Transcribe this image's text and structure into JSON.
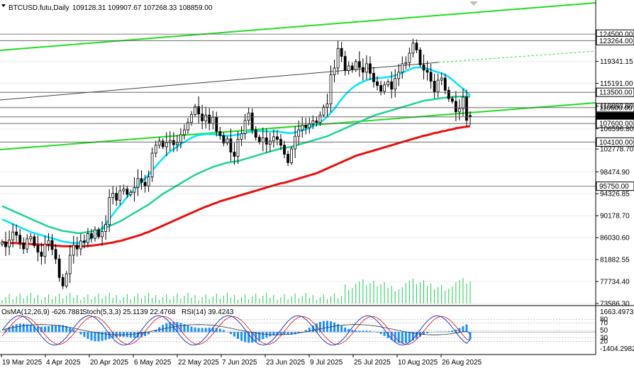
{
  "header": {
    "symbol_label": "BTCUSD.futu,Daily",
    "ohlc_label": "109128.31 109907.67 107268.33 108859.00"
  },
  "oscillator_header": {
    "osma_label": "OsMA(12,26,9) -626.7881",
    "stoch_label": "Stoch(5,3,3) 25.1139 22.4768",
    "rsi_label": "RSI(14) 39.4243"
  },
  "colors": {
    "candle": "#000000",
    "ma_fast": "#00e5ff",
    "ma_mid": "#1ed39a",
    "ma_slow": "#e81010",
    "channel": "#22dd22",
    "volume": "#22cc55",
    "osma_bar": "#1e90ff",
    "stoch_main": "#1f3fbf",
    "stoch_signal": "#d01010",
    "rsi": "#333333",
    "level_box": "#000000"
  },
  "chart_data": [
    {
      "type": "candlestick",
      "title": "",
      "x_labels": [
        "19 Mar 2025",
        "4 Apr 2025",
        "20 Apr 2025",
        "6 May 2025",
        "22 May 2025",
        "7 Jun 2025",
        "23 Jun 2025",
        "9 Jul 2025",
        "25 Jul 2025",
        "10 Aug 2025",
        "26 Aug 2025"
      ],
      "y_ticks": [
        119341.15,
        115191.0,
        110893.8,
        106596.8,
        102778.7,
        98474.9,
        94326.85,
        90178.7,
        86030.6,
        81882.55,
        77734.4,
        73586.3
      ],
      "ylim": [
        73586.3,
        128000
      ],
      "level_labels": [
        124500.0,
        123264.0,
        113500.0,
        110600.0,
        108859.0,
        107600.0,
        104100.0,
        95750.0
      ],
      "current_price": 108859.0,
      "last_candle": {
        "open": 109128.31,
        "high": 109907.67,
        "low": 107268.33,
        "close": 108859.0
      },
      "series_close": [
        85200,
        84300,
        85600,
        87100,
        86500,
        85000,
        83900,
        85800,
        86200,
        84500,
        83300,
        82500,
        84800,
        85500,
        83800,
        82000,
        78500,
        76900,
        79200,
        82700,
        84600,
        83900,
        85400,
        85100,
        86800,
        85900,
        87500,
        86200,
        87200,
        88500,
        93600,
        94400,
        93100,
        94900,
        95200,
        94200,
        94600,
        95500,
        97200,
        96500,
        95800,
        97500,
        102000,
        103500,
        104300,
        103200,
        104000,
        104400,
        103600,
        104000,
        105500,
        106400,
        107800,
        109300,
        110800,
        109400,
        108100,
        109200,
        107600,
        108800,
        106100,
        105300,
        103900,
        104700,
        102200,
        101400,
        104600,
        105700,
        108200,
        109600,
        106400,
        105000,
        104100,
        104900,
        103700,
        104300,
        105100,
        104600,
        103500,
        101800,
        100200,
        102800,
        105200,
        106400,
        107300,
        106800,
        107500,
        108100,
        107800,
        109200,
        110700,
        111300,
        116800,
        118100,
        121800,
        120300,
        117600,
        118500,
        117800,
        119300,
        118200,
        117300,
        118900,
        117100,
        115500,
        114800,
        113700,
        114900,
        115500,
        114100,
        116100,
        117300,
        118900,
        119100,
        120900,
        122800,
        121500,
        118700,
        117700,
        117300,
        115600,
        113600,
        115800,
        116200,
        113900,
        112300,
        111800,
        109800,
        110400,
        112600,
        108200,
        108860
      ],
      "ma_fast_values": [
        89500,
        89200,
        88900,
        88600,
        88300,
        88000,
        87700,
        87400,
        87100,
        86900,
        86700,
        86500,
        86300,
        86100,
        85900,
        85700,
        85500,
        85300,
        85200,
        85100,
        85000,
        85000,
        85100,
        85300,
        85600,
        86000,
        86500,
        87100,
        87800,
        88600,
        89500,
        90400,
        91300,
        92100,
        92900,
        93700,
        94400,
        95100,
        95800,
        96500,
        97200,
        97900,
        98700,
        99500,
        100300,
        101000,
        101700,
        102300,
        102800,
        103200,
        103700,
        104100,
        104500,
        104900,
        105200,
        105400,
        105500,
        105600,
        105600,
        105600,
        105500,
        105400,
        105300,
        105300,
        105300,
        105400,
        105500,
        105600,
        105800,
        106000,
        106100,
        106200,
        106200,
        106200,
        106100,
        106100,
        106100,
        106100,
        106000,
        105900,
        105800,
        105800,
        105900,
        106100,
        106300,
        106500,
        106800,
        107100,
        107400,
        107800,
        108300,
        108900,
        109600,
        110400,
        111300,
        112200,
        113000,
        113700,
        114300,
        114800,
        115200,
        115500,
        115800,
        116000,
        116100,
        116200,
        116200,
        116300,
        116400,
        116500,
        116700,
        116900,
        117200,
        117500,
        117800,
        118100,
        118200,
        118200,
        118100,
        118000,
        117800,
        117500,
        117300,
        117100,
        116800,
        116400,
        115900,
        115300,
        114700,
        114200,
        113500,
        112900
      ],
      "ma_mid_values": [
        92000,
        91700,
        91400,
        91100,
        90800,
        90500,
        90200,
        89900,
        89600,
        89300,
        89000,
        88700,
        88400,
        88100,
        87900,
        87700,
        87500,
        87300,
        87200,
        87100,
        87000,
        86900,
        86900,
        87000,
        87100,
        87200,
        87300,
        87500,
        87700,
        87900,
        88200,
        88500,
        88800,
        89100,
        89500,
        89900,
        90300,
        90700,
        91100,
        91500,
        91900,
        92300,
        92800,
        93300,
        93800,
        94300,
        94700,
        95100,
        95500,
        95900,
        96300,
        96700,
        97100,
        97500,
        97900,
        98200,
        98500,
        98800,
        99100,
        99400,
        99600,
        99800,
        100000,
        100200,
        100300,
        100400,
        100500,
        100700,
        100900,
        101100,
        101300,
        101500,
        101700,
        101900,
        102100,
        102300,
        102500,
        102700,
        102900,
        103000,
        103100,
        103200,
        103400,
        103600,
        103800,
        104000,
        104200,
        104400,
        104600,
        104800,
        105000,
        105200,
        105500,
        105800,
        106100,
        106400,
        106700,
        107000,
        107300,
        107600,
        107900,
        108200,
        108500,
        108800,
        109100,
        109300,
        109500,
        109700,
        109900,
        110100,
        110300,
        110500,
        110700,
        110900,
        111100,
        111300,
        111500,
        111700,
        111900,
        112000,
        112100,
        112200,
        112300,
        112400,
        112500,
        112600,
        112600,
        112700,
        112700,
        112700,
        112700,
        112700
      ],
      "ma_slow_values": [
        85200,
        85100,
        85000,
        85000,
        85000,
        84900,
        84900,
        84900,
        84800,
        84800,
        84700,
        84700,
        84600,
        84600,
        84600,
        84500,
        84500,
        84400,
        84400,
        84400,
        84400,
        84400,
        84400,
        84400,
        84500,
        84500,
        84600,
        84700,
        84800,
        84900,
        85000,
        85100,
        85300,
        85400,
        85600,
        85800,
        86000,
        86200,
        86400,
        86600,
        86900,
        87100,
        87400,
        87700,
        88000,
        88300,
        88600,
        88900,
        89200,
        89500,
        89800,
        90100,
        90400,
        90700,
        91000,
        91300,
        91600,
        91900,
        92100,
        92400,
        92600,
        92900,
        93100,
        93300,
        93500,
        93700,
        93900,
        94100,
        94300,
        94500,
        94700,
        94900,
        95100,
        95300,
        95500,
        95700,
        95900,
        96100,
        96300,
        96400,
        96600,
        96800,
        97000,
        97200,
        97400,
        97600,
        97800,
        98000,
        98200,
        98500,
        98800,
        99100,
        99400,
        99700,
        100000,
        100300,
        100600,
        100900,
        101200,
        101500,
        101700,
        101900,
        102100,
        102300,
        102500,
        102700,
        102900,
        103100,
        103300,
        103500,
        103700,
        103900,
        104100,
        104300,
        104500,
        104700,
        104900,
        105100,
        105300,
        105400,
        105600,
        105800,
        105900,
        106100,
        106200,
        106400,
        106500,
        106700,
        106800,
        106900,
        107000,
        107100
      ]
    },
    {
      "type": "oscillator",
      "title": "",
      "y_ticks": [
        1663.4973,
        80,
        70,
        50,
        30,
        20,
        -1404.2982
      ],
      "ylim": [
        -1404.2982,
        1663.4973
      ],
      "osma": [
        -625.0
      ],
      "stoch_main_last": 25.1139,
      "stoch_signal_last": 22.4768,
      "rsi_last": 39.4243
    }
  ]
}
